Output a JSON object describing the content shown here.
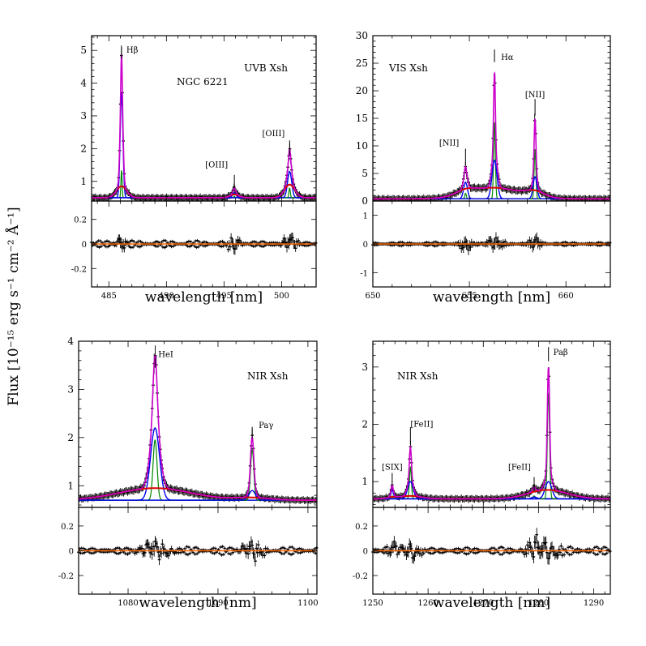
{
  "figure": {
    "ylabel": "Flux [10⁻¹⁵ erg s⁻¹ cm⁻² Å⁻¹]",
    "colors": {
      "total_fit": "#cc00cc",
      "narrow": "#0000ee",
      "broad": "#dd0000",
      "very_narrow": "#008800",
      "data": "#000000",
      "residual_fit": "#ff6600"
    }
  },
  "chart_data": [
    {
      "id": "uvb",
      "type": "line",
      "title": "UVB Xsh",
      "object": "NGC 6221",
      "xlabel": "wavelength [nm]",
      "xlim": [
        483.5,
        503
      ],
      "ylim": [
        0.4,
        5.45
      ],
      "xticks": [
        485,
        490,
        495,
        500
      ],
      "yticks": [
        1,
        2,
        3,
        4,
        5
      ],
      "yticklabels": [
        "1",
        "2",
        "3",
        "4",
        "5"
      ],
      "continuum": 0.5,
      "lines": [
        {
          "label": "Hβ",
          "center": 486.1,
          "narrow_amp": 3.2,
          "narrow_w": 0.12,
          "broad_amp": 0.35,
          "broad_w": 0.45,
          "vn_amp": 0.85,
          "vn_w": 0.05,
          "marker_y": [
            4.75,
            5.1
          ],
          "label_y": 5.0,
          "label_dx": 6,
          "label_anchor": "start"
        },
        {
          "label": "[OIII]",
          "center": 495.9,
          "narrow_amp": 0.15,
          "narrow_w": 0.15,
          "broad_amp": 0.1,
          "broad_w": 0.4,
          "vn_amp": 0.05,
          "vn_w": 0.05,
          "marker_y": [
            0.8,
            1.2
          ],
          "label_y": 1.5,
          "label_dx": -8,
          "label_anchor": "end"
        },
        {
          "label": "[OIII]",
          "center": 500.7,
          "narrow_amp": 0.8,
          "narrow_w": 0.18,
          "broad_amp": 0.4,
          "broad_w": 0.45,
          "vn_amp": 0.3,
          "vn_w": 0.06,
          "marker_y": [
            1.8,
            2.25
          ],
          "label_y": 2.45,
          "label_dx": -6,
          "label_anchor": "end"
        }
      ],
      "residual": {
        "ylim": [
          -0.35,
          0.35
        ],
        "yticks": [
          -0.2,
          0,
          0.2
        ],
        "yticklabels": [
          "-0.2",
          "0",
          "0.2"
        ],
        "amp": 0.03
      }
    },
    {
      "id": "vis",
      "type": "line",
      "title": "VIS Xsh",
      "xlabel": "wavelength [nm]",
      "xlim": [
        650,
        662.3
      ],
      "ylim": [
        0,
        30
      ],
      "xticks": [
        650,
        655,
        660
      ],
      "yticks": [
        0,
        5,
        10,
        15,
        20,
        25,
        30
      ],
      "yticklabels": [
        "0",
        "5",
        "10",
        "15",
        "20",
        "25",
        "30"
      ],
      "continuum": 0.4,
      "lines": [
        {
          "label": "[NII]",
          "center": 654.8,
          "narrow_amp": 3.0,
          "narrow_w": 0.1,
          "broad_amp": 0.8,
          "broad_w": 0.5,
          "vn_amp": 1.0,
          "vn_w": 0.04,
          "marker_y": [
            6.5,
            9.5
          ],
          "label_y": 10.5,
          "label_dx": -8,
          "label_anchor": "end"
        },
        {
          "label": "Hα",
          "center": 656.3,
          "narrow_amp": 7.0,
          "narrow_w": 0.13,
          "broad_amp": 2.0,
          "broad_w": 1.3,
          "vn_amp": 14.0,
          "vn_w": 0.045,
          "marker_y": [
            25.2,
            27.5
          ],
          "label_y": 26.0,
          "label_dx": 8,
          "label_anchor": "start"
        },
        {
          "label": "[NII]",
          "center": 658.4,
          "narrow_amp": 4.0,
          "narrow_w": 0.1,
          "broad_amp": 1.0,
          "broad_w": 0.5,
          "vn_amp": 9.0,
          "vn_w": 0.045,
          "marker_y": [
            15.5,
            18.5
          ],
          "label_y": 19.3,
          "label_dx": 0,
          "label_anchor": "middle"
        }
      ],
      "residual": {
        "ylim": [
          -1.5,
          1.5
        ],
        "yticks": [
          -1,
          0,
          1
        ],
        "yticklabels": [
          "-1",
          "0",
          "1"
        ],
        "amp": 0.08
      }
    },
    {
      "id": "nir1",
      "type": "line",
      "title": "NIR Xsh",
      "xlabel": "wavelength [nm]",
      "xlim": [
        1074.5,
        1101
      ],
      "ylim": [
        0.55,
        4.0
      ],
      "xticks": [
        1080,
        1090,
        1100
      ],
      "yticks": [
        1,
        2,
        3,
        4
      ],
      "yticklabels": [
        "1",
        "2",
        "3",
        "4"
      ],
      "continuum": 0.7,
      "lines": [
        {
          "label": "HeI",
          "center": 1083.0,
          "narrow_amp": 1.5,
          "narrow_w": 0.5,
          "broad_amp": 0.25,
          "broad_w": 4.0,
          "vn_amp": 1.25,
          "vn_w": 0.22,
          "marker_y": [
            3.45,
            3.65
          ],
          "label_y": 3.72,
          "label_dx": 4,
          "label_anchor": "start"
        },
        {
          "label": "Paγ",
          "center": 1093.8,
          "narrow_amp": 0.2,
          "narrow_w": 0.35,
          "broad_amp": 0.05,
          "broad_w": 2.0,
          "vn_amp": 1.05,
          "vn_w": 0.18,
          "marker_y": [
            1.98,
            2.22
          ],
          "label_y": 2.25,
          "label_dx": 8,
          "label_anchor": "start"
        }
      ],
      "residual": {
        "ylim": [
          -0.35,
          0.35
        ],
        "yticks": [
          -0.2,
          0,
          0.2
        ],
        "yticklabels": [
          "-0.2",
          "0",
          "0.2"
        ],
        "amp": 0.035
      }
    },
    {
      "id": "nir2",
      "type": "line",
      "title": "NIR Xsh",
      "xlabel": "wavelength [nm]",
      "xlim": [
        1250,
        1293
      ],
      "ylim": [
        0.55,
        3.45
      ],
      "xticks": [
        1250,
        1260,
        1270,
        1280,
        1290
      ],
      "yticks": [
        1,
        2,
        3
      ],
      "yticklabels": [
        "1",
        "2",
        "3"
      ],
      "continuum": 0.7,
      "lines": [
        {
          "label": "[SIX]",
          "center": 1253.5,
          "narrow_amp": 0.15,
          "narrow_w": 0.25,
          "broad_amp": 0.02,
          "broad_w": 1.0,
          "vn_amp": 0.05,
          "vn_w": 0.12,
          "marker_y": [
            0.98,
            1.15
          ],
          "label_y": 1.25,
          "label_dx": 0,
          "label_anchor": "middle"
        },
        {
          "label": "[FeII]",
          "center": 1256.8,
          "narrow_amp": 0.3,
          "narrow_w": 0.5,
          "broad_amp": 0.05,
          "broad_w": 2.0,
          "vn_amp": 0.55,
          "vn_w": 0.18,
          "marker_y": [
            1.65,
            1.95
          ],
          "label_y": 2.0,
          "label_dx": 0,
          "label_anchor": "start"
        },
        {
          "label": "[FeII]",
          "center": 1279.2,
          "narrow_amp": 0.03,
          "narrow_w": 0.5,
          "broad_amp": 0.01,
          "broad_w": 2.0,
          "vn_amp": 0.05,
          "vn_w": 0.2,
          "marker_y": [
            0.88,
            1.08
          ],
          "label_y": 1.25,
          "label_dx": -4,
          "label_anchor": "end"
        },
        {
          "label": "Paβ",
          "center": 1281.8,
          "narrow_amp": 0.3,
          "narrow_w": 0.6,
          "broad_amp": 0.15,
          "broad_w": 3.5,
          "vn_amp": 1.85,
          "vn_w": 0.2,
          "marker_y": [
            3.1,
            3.35
          ],
          "label_y": 3.25,
          "label_dx": 6,
          "label_anchor": "start"
        }
      ],
      "residual": {
        "ylim": [
          -0.35,
          0.35
        ],
        "yticks": [
          -0.2,
          0,
          0.2
        ],
        "yticklabels": [
          "-0.2",
          "0",
          "0.2"
        ],
        "amp": 0.035
      }
    }
  ]
}
